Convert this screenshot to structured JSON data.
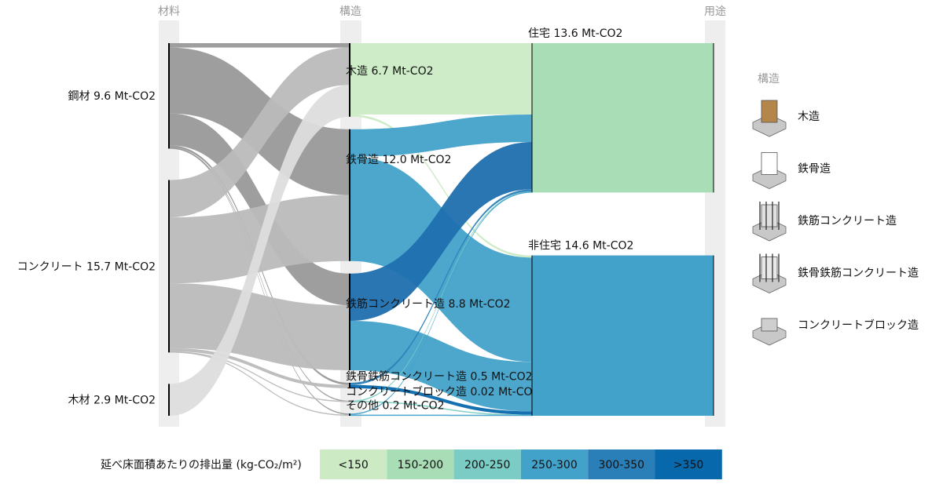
{
  "chart_data": {
    "type": "sankey",
    "columns": [
      {
        "label": "材料",
        "nodes": [
          {
            "label": "鋼材",
            "value": 9.6,
            "value_label": "9.6 Mt-CO2",
            "color": "#999999"
          },
          {
            "label": "コンクリート",
            "value": 15.7,
            "value_label": "15.7 Mt-CO2",
            "color": "#bbbbbb"
          },
          {
            "label": "木材",
            "value": 2.9,
            "value_label": "2.9 Mt-CO2",
            "color": "#dddddd"
          }
        ]
      },
      {
        "label": "構造",
        "nodes": [
          {
            "label": "木造",
            "value": 6.7,
            "value_label": "6.7 Mt-CO2"
          },
          {
            "label": "鉄骨造",
            "value": 12.0,
            "value_label": "12.0 Mt-CO2"
          },
          {
            "label": "鉄筋コンクリート造",
            "value": 8.8,
            "value_label": "8.8 Mt-CO2"
          },
          {
            "label": "鉄骨鉄筋コンクリート造",
            "value": 0.5,
            "value_label": "0.5 Mt-CO2"
          },
          {
            "label": "コンクリートブロック造",
            "value": 0.02,
            "value_label": "0.02 Mt-CO2"
          },
          {
            "label": "その他",
            "value": 0.2,
            "value_label": "0.2 Mt-CO2"
          }
        ]
      },
      {
        "label": "用途",
        "nodes": [
          {
            "label": "住宅",
            "value": 13.6,
            "value_label": "13.6 Mt-CO2",
            "color": "#a8ddb5"
          },
          {
            "label": "非住宅",
            "value": 14.6,
            "value_label": "14.6 Mt-CO2",
            "color": "#43a2ca"
          }
        ]
      }
    ],
    "links": [
      {
        "source": "鋼材",
        "target": "木造",
        "value": 0.4,
        "color": "#999999"
      },
      {
        "source": "鋼材",
        "target": "鉄骨造",
        "value": 6.0,
        "color": "#999999"
      },
      {
        "source": "鋼材",
        "target": "鉄筋コンクリート造",
        "value": 2.9,
        "color": "#999999"
      },
      {
        "source": "鋼材",
        "target": "鉄骨鉄筋コンクリート造",
        "value": 0.2,
        "color": "#999999"
      },
      {
        "source": "鋼材",
        "target": "コンクリートブロック造",
        "value": 0.01,
        "color": "#999999"
      },
      {
        "source": "鋼材",
        "target": "その他",
        "value": 0.1,
        "color": "#999999"
      },
      {
        "source": "コンクリート",
        "target": "木造",
        "value": 3.4,
        "color": "#bbbbbb"
      },
      {
        "source": "コンクリート",
        "target": "鉄骨造",
        "value": 6.0,
        "color": "#bbbbbb"
      },
      {
        "source": "コンクリート",
        "target": "鉄筋コンクリート造",
        "value": 5.9,
        "color": "#bbbbbb"
      },
      {
        "source": "コンクリート",
        "target": "鉄骨鉄筋コンクリート造",
        "value": 0.3,
        "color": "#bbbbbb"
      },
      {
        "source": "コンクリート",
        "target": "コンクリートブロック造",
        "value": 0.01,
        "color": "#bbbbbb"
      },
      {
        "source": "コンクリート",
        "target": "その他",
        "value": 0.1,
        "color": "#bbbbbb"
      },
      {
        "source": "木材",
        "target": "木造",
        "value": 2.9,
        "color": "#dddddd"
      },
      {
        "source": "木造",
        "target": "住宅",
        "value": 6.5,
        "color": "#ccebc5"
      },
      {
        "source": "木造",
        "target": "非住宅",
        "value": 0.2,
        "color": "#ccebc5"
      },
      {
        "source": "鉄骨造",
        "target": "住宅",
        "value": 2.5,
        "color": "#43a2ca"
      },
      {
        "source": "鉄骨造",
        "target": "非住宅",
        "value": 9.5,
        "color": "#43a2ca"
      },
      {
        "source": "鉄筋コンクリート造",
        "target": "住宅",
        "value": 4.3,
        "color": "#1f6fae"
      },
      {
        "source": "鉄筋コンクリート造",
        "target": "非住宅",
        "value": 4.5,
        "color": "#43a2ca"
      },
      {
        "source": "鉄骨鉄筋コンクリート造",
        "target": "住宅",
        "value": 0.2,
        "color": "#2b7fb8"
      },
      {
        "source": "鉄骨鉄筋コンクリート造",
        "target": "非住宅",
        "value": 0.3,
        "color": "#0868ac"
      },
      {
        "source": "コンクリートブロック造",
        "target": "住宅",
        "value": 0.01,
        "color": "#7bccc4"
      },
      {
        "source": "コンクリートブロック造",
        "target": "非住宅",
        "value": 0.01,
        "color": "#7bccc4"
      },
      {
        "source": "その他",
        "target": "住宅",
        "value": 0.1,
        "color": "#43a2ca"
      },
      {
        "source": "その他",
        "target": "非住宅",
        "value": 0.1,
        "color": "#43a2ca"
      }
    ],
    "legend": {
      "title": "構造",
      "items": [
        "木造",
        "鉄骨造",
        "鉄筋コンクリート造",
        "鉄骨鉄筋コンクリート造",
        "コンクリートブロック造"
      ]
    },
    "color_scale": {
      "title": "延べ床面積あたりの排出量 (kg-CO₂/m²)",
      "bins": [
        {
          "label": "<150",
          "color": "#ccebc5"
        },
        {
          "label": "150-200",
          "color": "#a8ddb5"
        },
        {
          "label": "200-250",
          "color": "#7bccc4"
        },
        {
          "label": "250-300",
          "color": "#43a2ca"
        },
        {
          "label": "300-350",
          "color": "#2b7fb8"
        },
        {
          "label": ">350",
          "color": "#0868ac"
        }
      ]
    }
  }
}
